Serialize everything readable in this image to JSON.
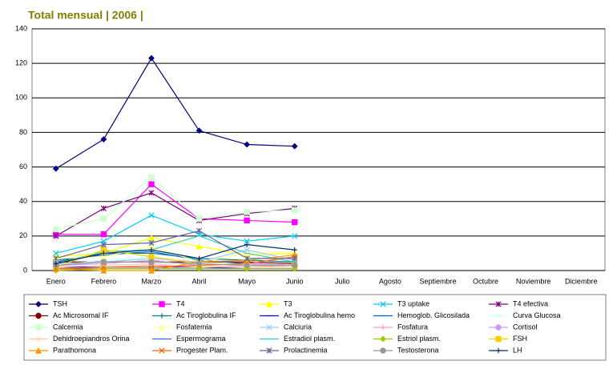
{
  "chart_data": {
    "type": "line",
    "title": "Total mensual | 2006 |",
    "categories": [
      "Enero",
      "Febrero",
      "Marzo",
      "Abril",
      "Mayo",
      "Junio",
      "Julio",
      "Agosto",
      "Septiembre",
      "Octubre",
      "Noviembre",
      "Diciembre"
    ],
    "ylim": [
      0,
      140
    ],
    "yticks": [
      0,
      20,
      40,
      60,
      80,
      100,
      120,
      140
    ],
    "grid": true,
    "series": [
      {
        "name": "TSH",
        "color": "#000080",
        "marker": "diamond",
        "values": [
          59,
          76,
          123,
          81,
          73,
          72,
          null,
          null,
          null,
          null,
          null,
          null
        ]
      },
      {
        "name": "T4",
        "color": "#ff00ff",
        "marker": "square",
        "values": [
          21,
          21,
          50,
          30,
          29,
          28,
          null,
          null,
          null,
          null,
          null,
          null
        ]
      },
      {
        "name": "T3",
        "color": "#ffff00",
        "marker": "triangle",
        "values": [
          8,
          10,
          19,
          14,
          9,
          10,
          null,
          null,
          null,
          null,
          null,
          null
        ]
      },
      {
        "name": "T3 uptake",
        "color": "#00ccff",
        "marker": "x",
        "values": [
          10,
          17,
          32,
          21,
          17,
          20,
          null,
          null,
          null,
          null,
          null,
          null
        ]
      },
      {
        "name": "T4 efectiva",
        "color": "#800080",
        "marker": "star",
        "values": [
          20,
          36,
          45,
          29,
          33,
          36,
          null,
          null,
          null,
          null,
          null,
          null
        ]
      },
      {
        "name": "Ac Microsomal IF",
        "color": "#800000",
        "marker": "circle",
        "values": [
          5,
          5,
          5,
          5,
          5,
          4,
          null,
          null,
          null,
          null,
          null,
          null
        ]
      },
      {
        "name": "Ac Tiroglobulina IF",
        "color": "#008080",
        "marker": "plus",
        "values": [
          5,
          10,
          10,
          7,
          6,
          5,
          null,
          null,
          null,
          null,
          null,
          null
        ]
      },
      {
        "name": "Ac Tiroglobulina hemo",
        "color": "#0000ff",
        "marker": "dash",
        "values": [
          2,
          2,
          2,
          2,
          1,
          1,
          null,
          null,
          null,
          null,
          null,
          null
        ]
      },
      {
        "name": "Hemoglob. Glicosilada",
        "color": "#0066cc",
        "marker": "dash",
        "values": [
          6,
          9,
          11,
          6,
          4,
          3,
          null,
          null,
          null,
          null,
          null,
          null
        ]
      },
      {
        "name": "Curva Glucosa",
        "color": "#ccffff",
        "marker": "x",
        "values": [
          3,
          6,
          8,
          4,
          3,
          2,
          null,
          null,
          null,
          null,
          null,
          null
        ]
      },
      {
        "name": "Calcemia",
        "color": "#ccffcc",
        "marker": "square",
        "values": [
          24,
          30,
          54,
          30,
          34,
          35,
          null,
          null,
          null,
          null,
          null,
          null
        ]
      },
      {
        "name": "Fosfatemia",
        "color": "#ffff99",
        "marker": "triangle",
        "values": [
          7,
          8,
          14,
          5,
          10,
          11,
          null,
          null,
          null,
          null,
          null,
          null
        ]
      },
      {
        "name": "Calciuria",
        "color": "#99ccff",
        "marker": "x",
        "values": [
          4,
          5,
          7,
          5,
          12,
          6,
          null,
          null,
          null,
          null,
          null,
          null
        ]
      },
      {
        "name": "Fosfatura",
        "color": "#ff99cc",
        "marker": "plus",
        "values": [
          1,
          2,
          3,
          2,
          2,
          2,
          null,
          null,
          null,
          null,
          null,
          null
        ]
      },
      {
        "name": "Cortisol",
        "color": "#cc99ff",
        "marker": "circle",
        "values": [
          3,
          4,
          6,
          3,
          4,
          3,
          null,
          null,
          null,
          null,
          null,
          null
        ]
      },
      {
        "name": "Dehidroepiandros Orina",
        "color": "#ffcc99",
        "marker": "plus",
        "values": [
          2,
          3,
          4,
          2,
          3,
          2,
          null,
          null,
          null,
          null,
          null,
          null
        ]
      },
      {
        "name": "Espermograma",
        "color": "#3366ff",
        "marker": "dash",
        "values": [
          1,
          1,
          1,
          1,
          1,
          1,
          null,
          null,
          null,
          null,
          null,
          null
        ]
      },
      {
        "name": "Estradiol plasm.",
        "color": "#33cccc",
        "marker": "dash",
        "values": [
          4,
          11,
          12,
          20,
          10,
          5,
          null,
          null,
          null,
          null,
          null,
          null
        ]
      },
      {
        "name": "Estriol plasm.",
        "color": "#99cc00",
        "marker": "diamond",
        "values": [
          0,
          1,
          1,
          1,
          1,
          1,
          null,
          null,
          null,
          null,
          null,
          null
        ]
      },
      {
        "name": "FSH",
        "color": "#ffcc00",
        "marker": "square",
        "values": [
          2,
          12,
          8,
          4,
          3,
          3,
          null,
          null,
          null,
          null,
          null,
          null
        ]
      },
      {
        "name": "Parathomona",
        "color": "#ff9900",
        "marker": "triangle",
        "values": [
          1,
          0,
          0,
          5,
          6,
          9,
          null,
          null,
          null,
          null,
          null,
          null
        ]
      },
      {
        "name": "Progester Plam.",
        "color": "#ff6600",
        "marker": "x",
        "values": [
          1,
          2,
          2,
          3,
          4,
          8,
          null,
          null,
          null,
          null,
          null,
          null
        ]
      },
      {
        "name": "Prolactinemia",
        "color": "#666699",
        "marker": "star",
        "values": [
          7,
          15,
          16,
          23,
          7,
          7,
          null,
          null,
          null,
          null,
          null,
          null
        ]
      },
      {
        "name": "Testosterona",
        "color": "#969696",
        "marker": "circle",
        "values": [
          3,
          5,
          5,
          4,
          3,
          3,
          null,
          null,
          null,
          null,
          null,
          null
        ]
      },
      {
        "name": "LH",
        "color": "#003366",
        "marker": "plus",
        "values": [
          4,
          10,
          12,
          7,
          15,
          12,
          null,
          null,
          null,
          null,
          null,
          null
        ]
      }
    ]
  }
}
